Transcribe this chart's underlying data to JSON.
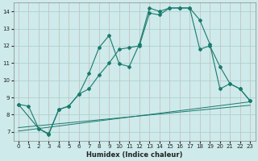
{
  "xlabel": "Humidex (Indice chaleur)",
  "xlim": [
    -0.5,
    23.5
  ],
  "ylim": [
    6.5,
    14.5
  ],
  "xticks": [
    0,
    1,
    2,
    3,
    4,
    5,
    6,
    7,
    8,
    9,
    10,
    11,
    12,
    13,
    14,
    15,
    16,
    17,
    18,
    19,
    20,
    21,
    22,
    23
  ],
  "yticks": [
    7,
    8,
    9,
    10,
    11,
    12,
    13,
    14
  ],
  "bg_color": "#ceeaea",
  "grid_color": "#a8cccc",
  "line_color": "#1a7a6e",
  "curve1": {
    "x": [
      0,
      1,
      2,
      3,
      4,
      5,
      6,
      7,
      8,
      9,
      10,
      11,
      12,
      13,
      14,
      15,
      16,
      17,
      18,
      19,
      20,
      21,
      22,
      23
    ],
    "y": [
      8.6,
      8.5,
      7.2,
      6.85,
      8.3,
      8.5,
      9.2,
      10.4,
      11.9,
      12.6,
      10.95,
      10.8,
      12.1,
      14.2,
      14.0,
      14.2,
      14.2,
      14.2,
      13.5,
      12.1,
      9.5,
      9.8,
      9.5,
      8.8
    ]
  },
  "curve2": {
    "x": [
      0,
      2,
      3,
      4,
      5,
      6,
      7,
      8,
      9,
      10,
      11,
      12,
      13,
      14,
      15,
      16,
      17,
      18,
      19,
      20,
      21,
      22,
      23
    ],
    "y": [
      8.6,
      7.2,
      6.9,
      8.3,
      8.5,
      9.2,
      9.5,
      10.3,
      11.0,
      11.8,
      11.9,
      12.0,
      13.9,
      13.8,
      14.2,
      14.2,
      14.2,
      11.8,
      12.0,
      10.8,
      9.8,
      9.5,
      8.8
    ]
  },
  "straight1": {
    "x": [
      0,
      23
    ],
    "y": [
      7.05,
      8.75
    ]
  },
  "straight2": {
    "x": [
      0,
      23
    ],
    "y": [
      7.25,
      8.55
    ]
  }
}
